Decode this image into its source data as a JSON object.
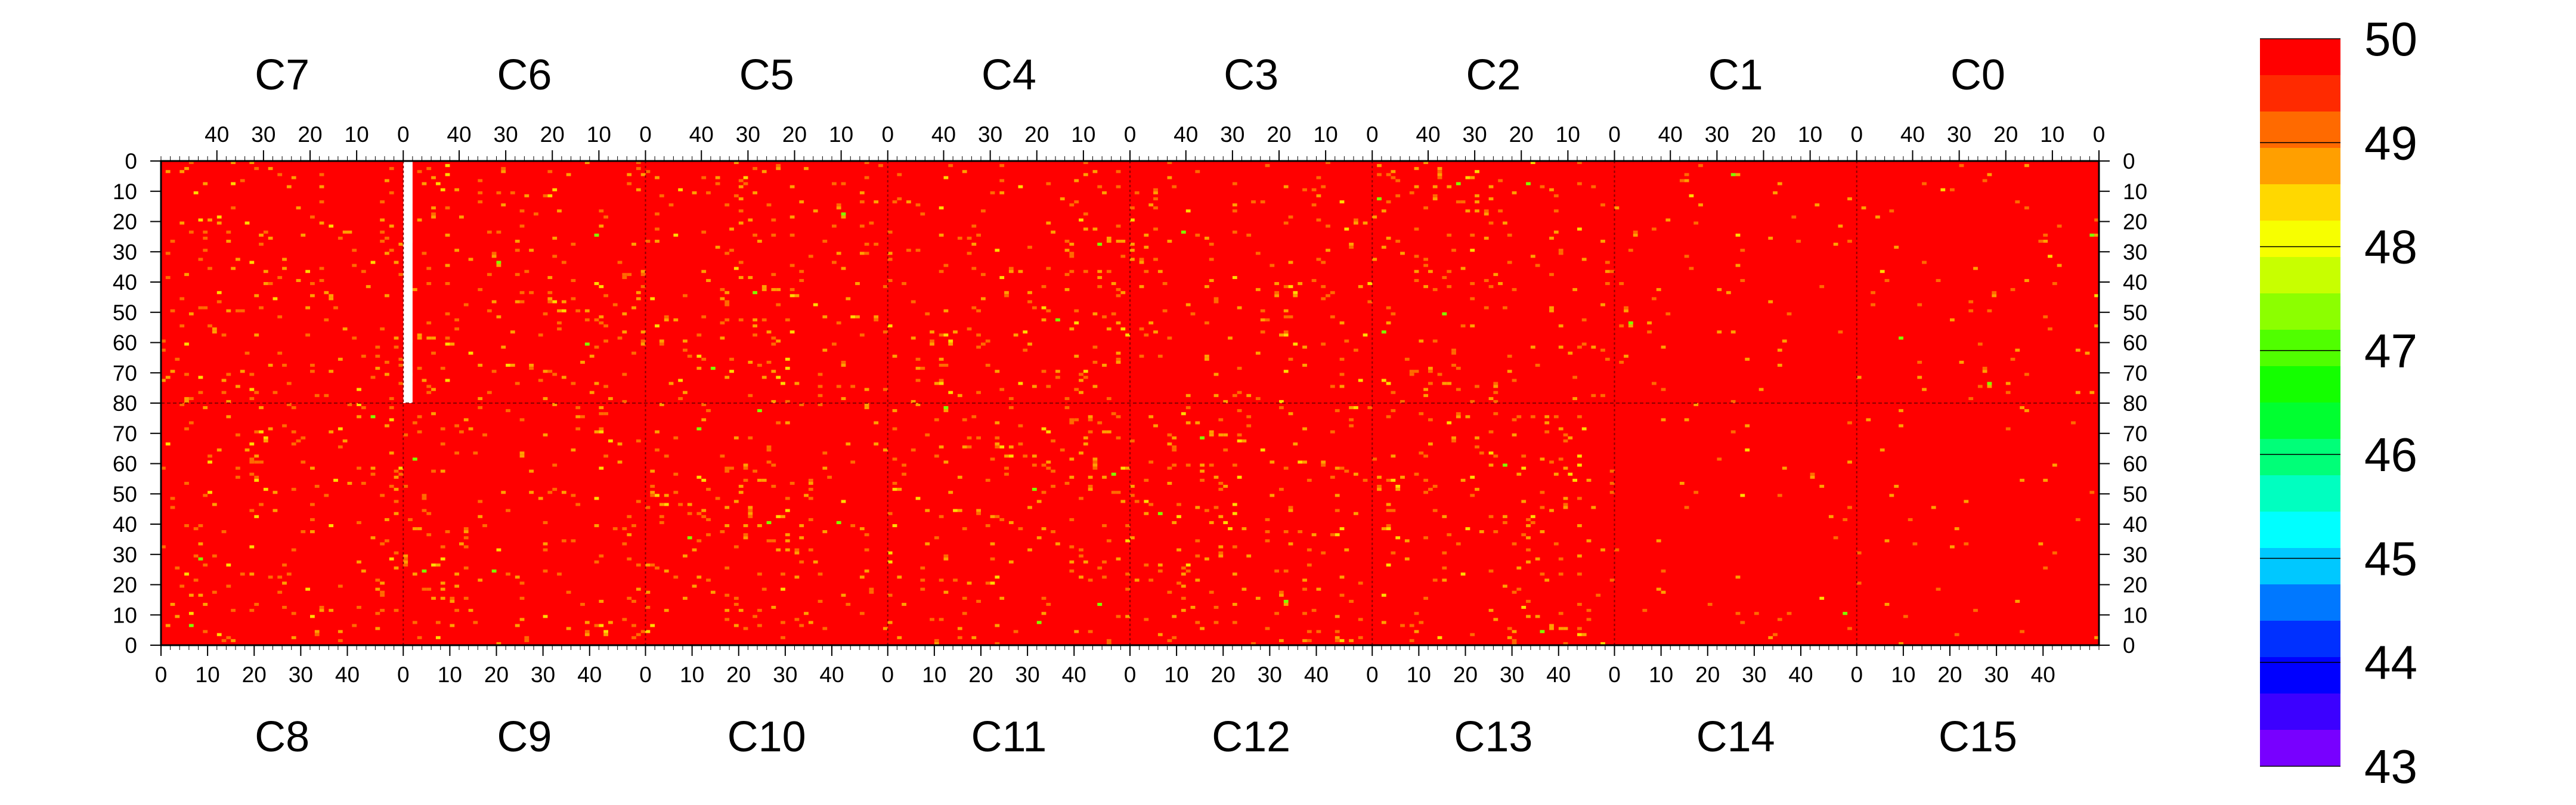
{
  "chart_data": {
    "type": "heatmap",
    "title": "",
    "colormap": "rainbow (purple to red)",
    "background_color": "#ff0000",
    "top_row": {
      "chips": [
        "C7",
        "C6",
        "C5",
        "C4",
        "C3",
        "C2",
        "C1",
        "C0"
      ],
      "x_ticks": [
        "40",
        "30",
        "20",
        "10",
        "0"
      ],
      "x_range": [
        52,
        0
      ],
      "y_range": [
        0,
        80
      ]
    },
    "bottom_row": {
      "chips": [
        "C8",
        "C9",
        "C10",
        "C11",
        "C12",
        "C13",
        "C14",
        "C15"
      ],
      "x_ticks": [
        "0",
        "10",
        "20",
        "30",
        "40"
      ],
      "x_range": [
        0,
        52
      ],
      "y_range": [
        0,
        80
      ]
    },
    "y_ticks_top": [
      "0",
      "10",
      "20",
      "30",
      "40",
      "50",
      "60",
      "70",
      "80"
    ],
    "y_ticks_bottom": [
      "70",
      "60",
      "50",
      "40",
      "30",
      "20",
      "10",
      "0"
    ],
    "colorbar": {
      "range": [
        43,
        50
      ],
      "tick_labels": [
        "50",
        "49",
        "48",
        "47",
        "46",
        "45",
        "44",
        "43"
      ]
    },
    "missing_region": {
      "chip": "C7",
      "columns": [
        0,
        2
      ],
      "rows": [
        0,
        80
      ]
    },
    "dominant_value": 50,
    "scattered_values": [
      49,
      48,
      47
    ]
  }
}
